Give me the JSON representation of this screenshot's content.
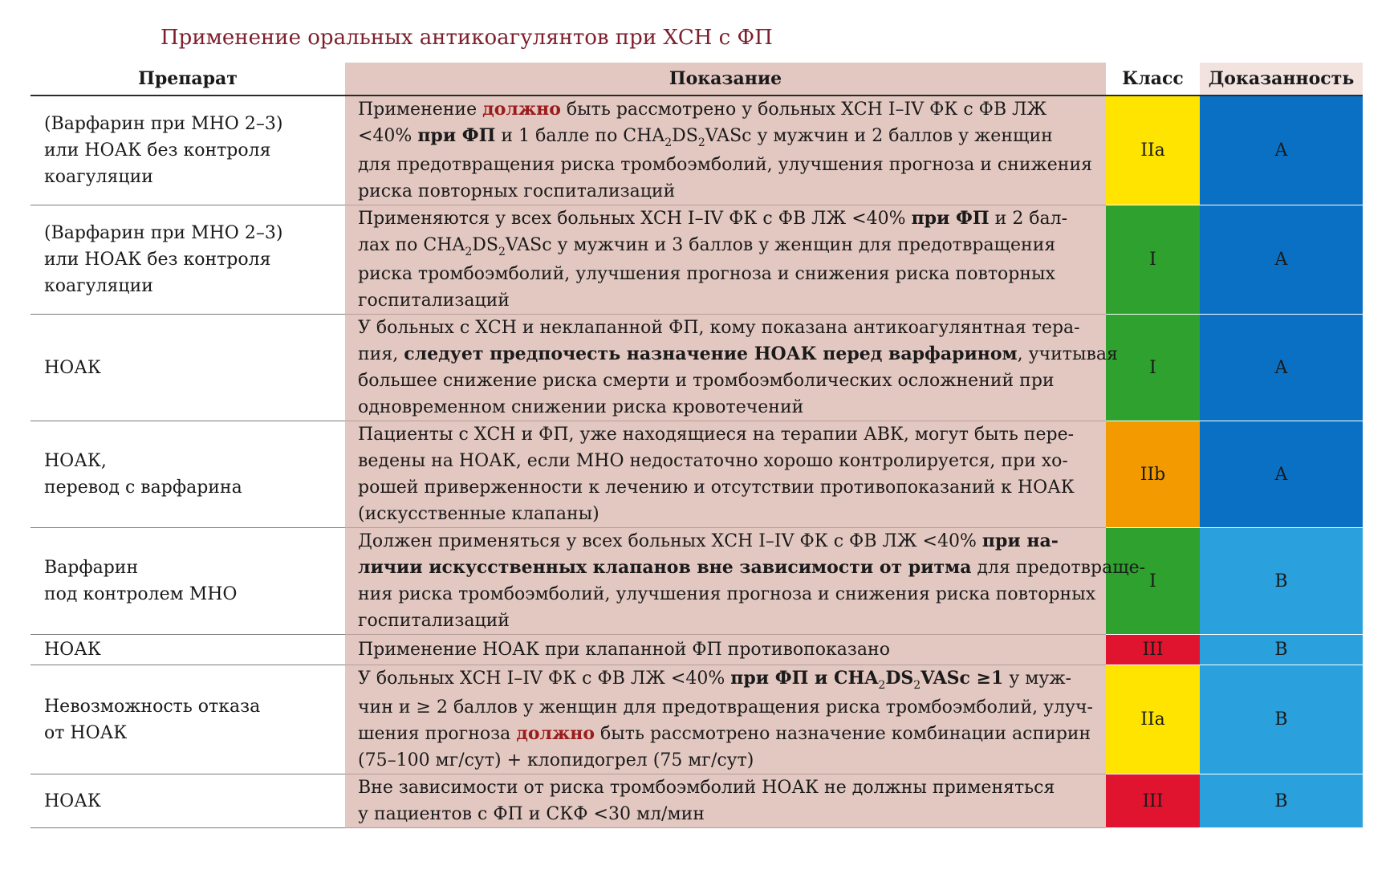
{
  "title": "Применение оральных антикоагулянтов при ХСН с ФП",
  "headers": {
    "drug": "Препарат",
    "indication": "Показание",
    "class": "Класс",
    "evidence": "Доказанность"
  },
  "colors": {
    "indication_bg": "#e3c8c1",
    "class_I": "#2ea12e",
    "class_IIa": "#ffe400",
    "class_IIb": "#f29a00",
    "class_III": "#e0142f",
    "evidence_A": "#0a70c4",
    "evidence_B": "#2aa0dd"
  },
  "rows": [
    {
      "drug": [
        "(Варфарин при МНО 2–3)",
        "или НОАК без контроля",
        "коагуляции"
      ],
      "indication": [
        [
          {
            "t": "Применение "
          },
          {
            "t": "должно",
            "s": "red"
          },
          {
            "t": " быть рассмотрено у больных ХСН I–IV ФК с ФВ ЛЖ"
          }
        ],
        [
          {
            "t": "<40% "
          },
          {
            "t": "при ФП",
            "s": "strong"
          },
          {
            "t": " и 1 балле по CHA"
          },
          {
            "t": "2",
            "s": "sub"
          },
          {
            "t": "DS"
          },
          {
            "t": "2",
            "s": "sub"
          },
          {
            "t": "VASc у мужчин и 2 баллов у женщин"
          }
        ],
        [
          {
            "t": "для предотвращения риска тромбоэмболий, улучшения прогноза и снижения"
          }
        ],
        [
          {
            "t": "риска повторных госпитализаций"
          }
        ]
      ],
      "class": "IIa",
      "class_color": "#ffe400",
      "evidence": "A",
      "evidence_color": "#0a70c4",
      "height": 127
    },
    {
      "drug": [
        "(Варфарин при МНО 2–3)",
        "или НОАК без контроля",
        "коагуляции"
      ],
      "indication": [
        [
          {
            "t": "Применяются у всех больных ХСН I–IV ФК с ФВ ЛЖ <40% "
          },
          {
            "t": "при ФП",
            "s": "strong"
          },
          {
            "t": " и 2 бал-"
          }
        ],
        [
          {
            "t": "лах по CHA"
          },
          {
            "t": "2",
            "s": "sub"
          },
          {
            "t": "DS"
          },
          {
            "t": "2",
            "s": "sub"
          },
          {
            "t": "VASc у мужчин и 3 баллов у женщин для предотвращения"
          }
        ],
        [
          {
            "t": "риска тромбоэмболий, улучшения прогноза и снижения риска повторных"
          }
        ],
        [
          {
            "t": "госпитализаций"
          }
        ]
      ],
      "class": "I",
      "class_color": "#2ea12e",
      "evidence": "A",
      "evidence_color": "#0a70c4",
      "height": 127
    },
    {
      "drug": [
        "НОАК"
      ],
      "indication": [
        [
          {
            "t": "У больных с ХСН и неклапанной ФП, кому показана антикоагулянтная тера-"
          }
        ],
        [
          {
            "t": "пия, "
          },
          {
            "t": "следует предпочесть назначение НОАК перед варфарином",
            "s": "strong"
          },
          {
            "t": ", учитывая"
          }
        ],
        [
          {
            "t": "большее снижение риска смерти и тромбоэмболических осложнений при"
          }
        ],
        [
          {
            "t": "одновременном снижении риска кровотечений"
          }
        ]
      ],
      "class": "I",
      "class_color": "#2ea12e",
      "evidence": "A",
      "evidence_color": "#0a70c4",
      "height": 127
    },
    {
      "drug": [
        "НОАК,",
        "перевод с варфарина"
      ],
      "indication": [
        [
          {
            "t": "Пациенты с ХСН и ФП, уже находящиеся на терапии АВК, могут быть пере-"
          }
        ],
        [
          {
            "t": "ведены на НОАК, если МНО недостаточно хорошо контролируется, при хо-"
          }
        ],
        [
          {
            "t": "рошей приверженности к лечению и отсутствии противопоказаний к НОАК"
          }
        ],
        [
          {
            "t": "(искусственные клапаны)"
          }
        ]
      ],
      "class": "IIb",
      "class_color": "#f29a00",
      "evidence": "A",
      "evidence_color": "#0a70c4",
      "height": 127
    },
    {
      "drug": [
        "Варфарин",
        "под контролем МНО"
      ],
      "indication": [
        [
          {
            "t": "Должен применяться у всех больных ХСН I–IV ФК с ФВ ЛЖ <40% "
          },
          {
            "t": "при на-",
            "s": "strong"
          }
        ],
        [
          {
            "t": "личии искусственных клапанов вне зависимости от ритма",
            "s": "strong"
          },
          {
            "t": " для предотвраще-"
          }
        ],
        [
          {
            "t": "ния риска тромбоэмболий, улучшения прогноза и снижения риска повторных"
          }
        ],
        [
          {
            "t": "госпитализаций"
          }
        ]
      ],
      "class": "I",
      "class_color": "#2ea12e",
      "evidence": "B",
      "evidence_color": "#2aa0dd",
      "height": 127
    },
    {
      "drug": [
        "НОАК"
      ],
      "indication": [
        [
          {
            "t": "Применение НОАК при клапанной ФП противопоказано"
          }
        ]
      ],
      "class": "III",
      "class_color": "#e0142f",
      "evidence": "B",
      "evidence_color": "#2aa0dd",
      "height": 38
    },
    {
      "drug": [
        "Невозможность отказа",
        "от НОАК"
      ],
      "indication": [
        [
          {
            "t": "У больных ХСН I–IV ФК с ФВ ЛЖ <40% "
          },
          {
            "t": "при ФП и CHA",
            "s": "strong"
          },
          {
            "t": "2",
            "s": "sub"
          },
          {
            "t": "DS",
            "s": "strong"
          },
          {
            "t": "2",
            "s": "sub"
          },
          {
            "t": "VASc ≥1",
            "s": "strong"
          },
          {
            "t": " у муж-"
          }
        ],
        [
          {
            "t": "чин и ≥ 2 баллов у женщин для предотвращения риска тромбоэмболий, улуч-"
          }
        ],
        [
          {
            "t": "шения прогноза "
          },
          {
            "t": "должно",
            "s": "red"
          },
          {
            "t": " быть рассмотрено назначение комбинации аспирин"
          }
        ],
        [
          {
            "t": "(75–100 мг/сут) + клопидогрел (75 мг/сут)"
          }
        ]
      ],
      "class": "IIa",
      "class_color": "#ffe400",
      "evidence": "B",
      "evidence_color": "#2aa0dd",
      "height": 127
    },
    {
      "drug": [
        "НОАК"
      ],
      "indication": [
        [
          {
            "t": "Вне зависимости от риска тромбоэмболий НОАК не должны применяться"
          }
        ],
        [
          {
            "t": "у пациентов с ФП и СКФ <30 мл/мин"
          }
        ]
      ],
      "class": "III",
      "class_color": "#e0142f",
      "evidence": "B",
      "evidence_color": "#2aa0dd",
      "height": 66
    }
  ]
}
